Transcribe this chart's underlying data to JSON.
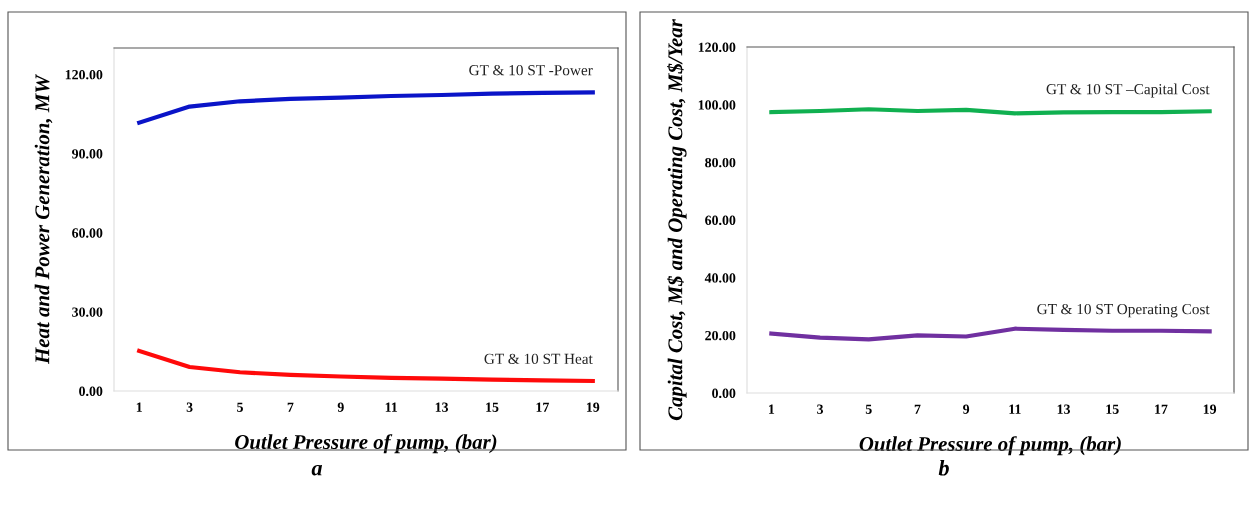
{
  "chart_data": [
    {
      "type": "line",
      "xlabel": "Outlet Pressure of pump, (bar)",
      "ylabel": "Heat and Power Generation, MW",
      "categories": [
        "1",
        "3",
        "5",
        "7",
        "9",
        "11",
        "13",
        "15",
        "17",
        "19"
      ],
      "series": [
        {
          "name": "GT & 10 ST -Power",
          "color": "#0a14c8",
          "values": [
            101.7,
            107.8,
            109.8,
            110.7,
            111.2,
            111.8,
            112.2,
            112.7,
            113.0,
            113.2
          ]
        },
        {
          "name": "GT & 10 ST Heat",
          "color": "#ff0a0a",
          "values": [
            15.2,
            9.1,
            7.1,
            6.1,
            5.5,
            5.0,
            4.7,
            4.3,
            4.0,
            3.8
          ]
        }
      ],
      "ylim": [
        0,
        130
      ],
      "yticks": [
        {
          "value": 0,
          "label": "0.00"
        },
        {
          "value": 30,
          "label": "30.00"
        },
        {
          "value": 60,
          "label": "60.00"
        },
        {
          "value": 90,
          "label": "90.00"
        },
        {
          "value": 120,
          "label": "120.00"
        }
      ],
      "grid": false,
      "legend": false,
      "marker": "none",
      "line_style": "solid",
      "annotations": [
        "a"
      ]
    },
    {
      "type": "line",
      "xlabel": "Outlet Pressure of pump, (bar)",
      "ylabel": "Capital Cost, M$ and Operating Cost, M$/Year",
      "categories": [
        "1",
        "3",
        "5",
        "7",
        "9",
        "11",
        "13",
        "15",
        "17",
        "19"
      ],
      "series": [
        {
          "name": "GT & 10 ST –Capital Cost",
          "color": "#10b050",
          "values": [
            97.4,
            97.8,
            98.4,
            97.8,
            98.2,
            97.0,
            97.3,
            97.4,
            97.4,
            97.7
          ]
        },
        {
          "name": "GT & 10 ST Operating Cost",
          "color": "#7030a0",
          "values": [
            20.6,
            19.2,
            18.6,
            20.0,
            19.6,
            22.3,
            21.9,
            21.6,
            21.6,
            21.4
          ]
        }
      ],
      "ylim": [
        0,
        120
      ],
      "yticks": [
        {
          "value": 0,
          "label": "0.00"
        },
        {
          "value": 20,
          "label": "20.00"
        },
        {
          "value": 40,
          "label": "40.00"
        },
        {
          "value": 60,
          "label": "60.00"
        },
        {
          "value": 80,
          "label": "80.00"
        },
        {
          "value": 100,
          "label": "100.00"
        },
        {
          "value": 120,
          "label": "120.00"
        }
      ],
      "grid": false,
      "legend": false,
      "marker": "none",
      "line_style": "solid",
      "annotations": [
        "b"
      ]
    }
  ]
}
